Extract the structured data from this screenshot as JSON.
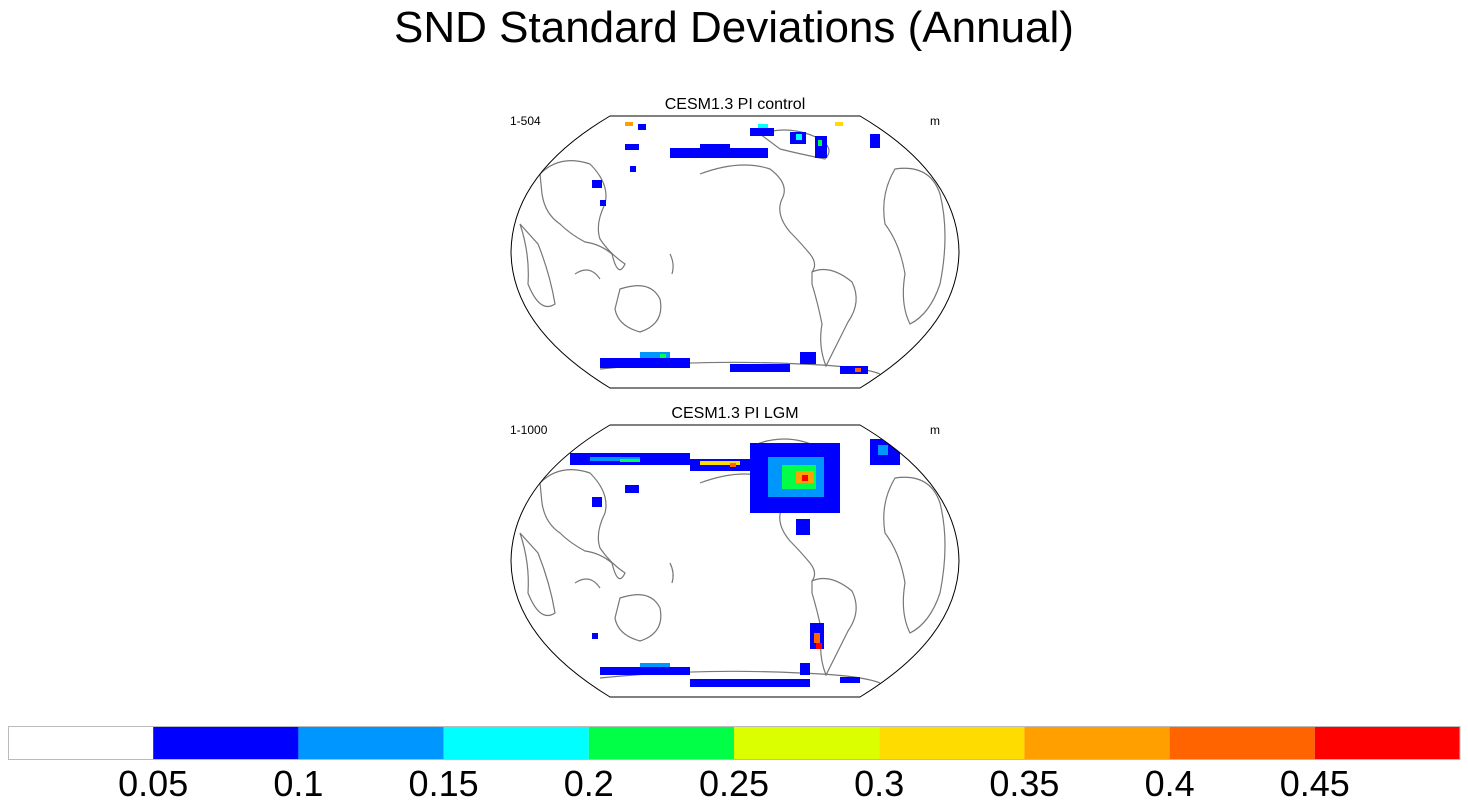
{
  "title": "SND Standard Deviations (Annual)",
  "panels": [
    {
      "title": "CESM1.3 PI control",
      "left_label": "1-504",
      "right_label": "m",
      "snow_regions": [
        {
          "name": "siberia-arctic",
          "level": 1
        },
        {
          "name": "alaska-yukon",
          "level": 3
        },
        {
          "name": "canadian-archipelago",
          "level": 4
        },
        {
          "name": "greenland-coast",
          "level": 2
        },
        {
          "name": "tibet",
          "level": 1
        },
        {
          "name": "antarctic-coast",
          "level": 2
        }
      ]
    },
    {
      "title": "CESM1.3 PI LGM",
      "left_label": "1-1000",
      "right_label": "m",
      "snow_regions": [
        {
          "name": "siberia-arctic",
          "level": 3
        },
        {
          "name": "north-america-ice-sheet",
          "level": 7
        },
        {
          "name": "scandinavia",
          "level": 3
        },
        {
          "name": "patagonia",
          "level": 8
        },
        {
          "name": "tibet",
          "level": 1
        },
        {
          "name": "antarctic-coast",
          "level": 2
        }
      ]
    }
  ],
  "colorbar": {
    "colors": [
      "#ffffff",
      "#0000ff",
      "#0096ff",
      "#00ffff",
      "#00ff46",
      "#dcff00",
      "#ffdc00",
      "#ffa000",
      "#ff6400",
      "#ff0000"
    ],
    "ticks": [
      "0.05",
      "0.1",
      "0.15",
      "0.2",
      "0.25",
      "0.3",
      "0.35",
      "0.4",
      "0.45"
    ]
  }
}
